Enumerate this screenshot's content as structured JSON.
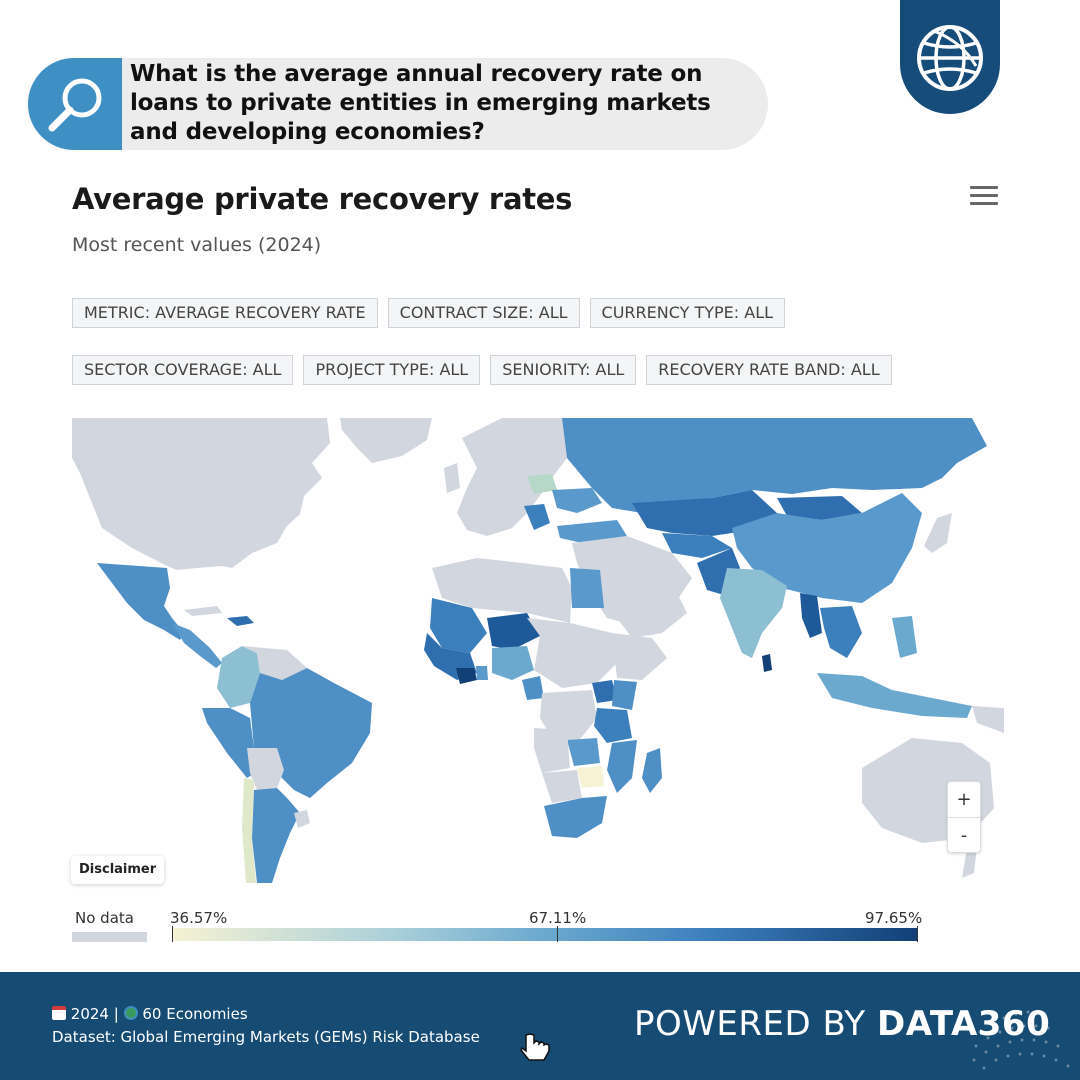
{
  "question": {
    "text": "What is the average annual recovery rate on loans to private entities in emerging markets and developing economies?"
  },
  "chart": {
    "title": "Average private recovery rates",
    "subtitle": "Most recent values (2024)",
    "menu_icon": "hamburger-icon"
  },
  "filters": {
    "row1": [
      "METRIC: AVERAGE RECOVERY RATE",
      "CONTRACT SIZE: ALL",
      "CURRENCY TYPE: ALL"
    ],
    "row2": [
      "SECTOR COVERAGE: ALL",
      "PROJECT TYPE: ALL",
      "SENIORITY: ALL",
      "RECOVERY RATE BAND: ALL"
    ]
  },
  "map": {
    "zoom_in": "+",
    "zoom_out": "-",
    "disclaimer": "Disclaimer",
    "colors": {
      "no_data": "#d2d6de",
      "low": "#f6f2d3",
      "mid": "#6ba9cf",
      "high": "#123f76",
      "water": "#ffffff"
    }
  },
  "legend": {
    "no_data_label": "No data",
    "min_label": "36.57%",
    "mid_label": "67.11%",
    "max_label": "97.65%"
  },
  "footer": {
    "year": "2024",
    "economies": "60 Economies",
    "separator": "|",
    "dataset": "Dataset: Global Emerging Markets (GEMs) Risk Database",
    "powered_by": "POWERED BY",
    "brand": "DATA360"
  }
}
